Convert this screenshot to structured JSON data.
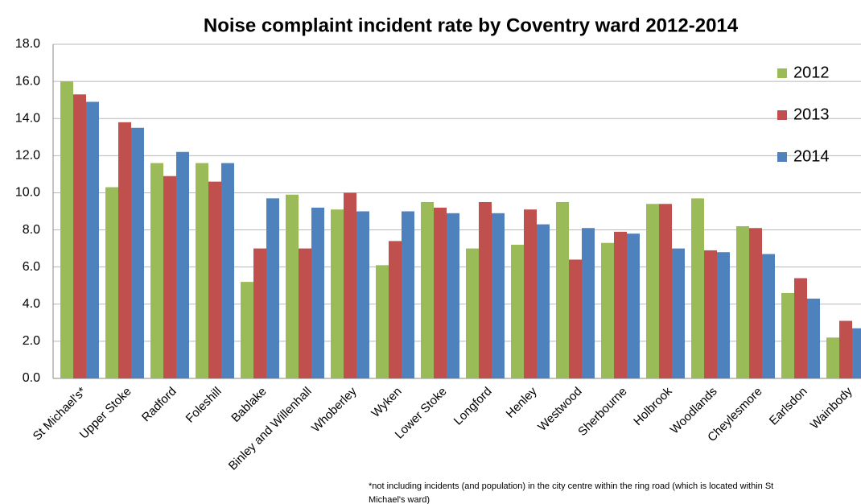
{
  "chart_data": {
    "type": "bar",
    "title": "Noise complaint incident rate by Coventry ward 2012-2014",
    "categories": [
      "St Michael's*",
      "Upper Stoke",
      "Radford",
      "Foleshill",
      "Bablake",
      "Binley and Willenhall",
      "Whoberley",
      "Wyken",
      "Lower Stoke",
      "Longford",
      "Henley",
      "Westwood",
      "Sherbourne",
      "Holbrook",
      "Woodlands",
      "Cheylesmore",
      "Earlsdon",
      "Wainbody"
    ],
    "series": [
      {
        "name": "2012",
        "color": "#9bbb59",
        "values": [
          16.0,
          10.3,
          11.6,
          11.6,
          5.2,
          9.9,
          9.1,
          6.1,
          9.5,
          7.0,
          7.2,
          9.5,
          7.3,
          9.4,
          9.7,
          8.2,
          4.6,
          2.2
        ]
      },
      {
        "name": "2013",
        "color": "#c0504d",
        "values": [
          15.3,
          13.8,
          10.9,
          10.6,
          7.0,
          7.0,
          10.0,
          7.4,
          9.2,
          9.5,
          9.1,
          6.4,
          7.9,
          9.4,
          6.9,
          8.1,
          5.4,
          3.1
        ]
      },
      {
        "name": "2014",
        "color": "#4f81bd",
        "values": [
          14.9,
          13.5,
          12.2,
          11.6,
          9.7,
          9.2,
          9.0,
          9.0,
          8.9,
          8.9,
          8.3,
          8.1,
          7.8,
          7.0,
          6.8,
          6.7,
          4.3,
          2.7
        ]
      }
    ],
    "ylim": [
      0,
      18
    ],
    "yticks": [
      {
        "value": 0,
        "label": "0.0"
      },
      {
        "value": 2,
        "label": "2.0"
      },
      {
        "value": 4,
        "label": "4.0"
      },
      {
        "value": 6,
        "label": "6.0"
      },
      {
        "value": 8,
        "label": "8.0"
      },
      {
        "value": 10,
        "label": "10.0"
      },
      {
        "value": 12,
        "label": "12.0"
      },
      {
        "value": 14,
        "label": "14.0"
      },
      {
        "value": 16,
        "label": "16.0"
      },
      {
        "value": 18,
        "label": "18.0"
      }
    ],
    "grid": true,
    "legend": "right",
    "footnote": [
      "*not including incidents (and population) in the city centre within the ring road (which is located within St",
      "Michael's ward)"
    ]
  }
}
